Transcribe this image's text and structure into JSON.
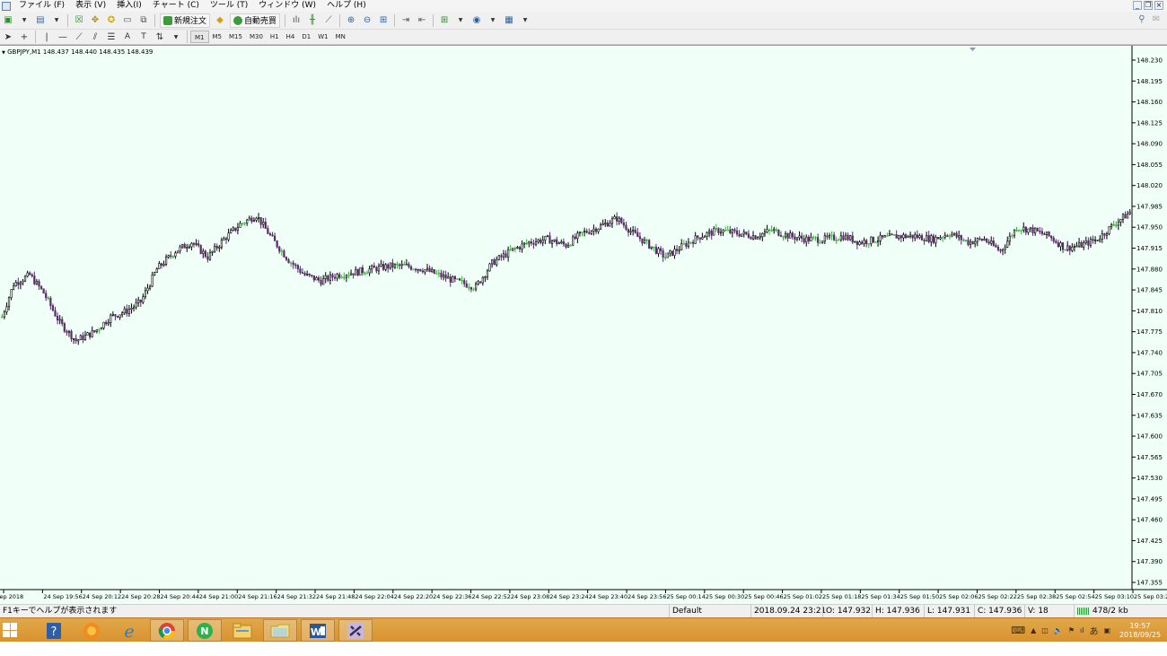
{
  "menu": {
    "items": [
      "ファイル (F)",
      "表示 (V)",
      "挿入(I)",
      "チャート (C)",
      "ツール (T)",
      "ウィンドウ (W)",
      "ヘルプ (H)"
    ]
  },
  "toolbar": {
    "new_order_label": "新規注文",
    "auto_trade_label": "自動売買",
    "timeframes": [
      "M1",
      "M5",
      "M15",
      "M30",
      "H1",
      "H4",
      "D1",
      "W1",
      "MN"
    ],
    "active_timeframe": "M1"
  },
  "chart": {
    "symbol_info": "GBPJPY,M1  148.437 148.440 148.435 148.439",
    "background_color": "#f0fff7",
    "bull_color": "#000000",
    "bear_color": "#5a2a6a",
    "doji_color": "#2db82d"
  },
  "chart_data": {
    "type": "candlestick",
    "symbol": "GBPJPY",
    "timeframe": "M1",
    "y_ticks": [
      "148.230",
      "148.195",
      "148.160",
      "148.125",
      "148.090",
      "148.055",
      "148.020",
      "147.985",
      "147.950",
      "147.915",
      "147.880",
      "147.845",
      "147.810",
      "147.775",
      "147.740",
      "147.705",
      "147.670",
      "147.635",
      "147.600",
      "147.565",
      "147.530",
      "147.495",
      "147.460",
      "147.425",
      "147.390",
      "147.355"
    ],
    "ylim": [
      147.355,
      148.23
    ],
    "x_ticks": [
      "24 Sep 2018",
      "24 Sep 19:56",
      "24 Sep 20:12",
      "24 Sep 20:28",
      "24 Sep 20:44",
      "24 Sep 21:00",
      "24 Sep 21:16",
      "24 Sep 21:32",
      "24 Sep 21:48",
      "24 Sep 22:04",
      "24 Sep 22:20",
      "24 Sep 22:36",
      "24 Sep 22:52",
      "24 Sep 23:08",
      "24 Sep 23:24",
      "24 Sep 23:40",
      "24 Sep 23:56",
      "25 Sep 00:14",
      "25 Sep 00:30",
      "25 Sep 00:46",
      "25 Sep 01:02",
      "25 Sep 01:18",
      "25 Sep 01:34",
      "25 Sep 01:50",
      "25 Sep 02:06",
      "25 Sep 02:22",
      "25 Sep 02:38",
      "25 Sep 02:54",
      "25 Sep 03:10",
      "25 Sep 03:26"
    ],
    "close_path": [
      [
        0,
        147.8
      ],
      [
        5,
        147.855
      ],
      [
        12,
        147.87
      ],
      [
        18,
        147.84
      ],
      [
        25,
        147.79
      ],
      [
        32,
        147.76
      ],
      [
        40,
        147.775
      ],
      [
        47,
        147.8
      ],
      [
        54,
        147.81
      ],
      [
        60,
        147.825
      ],
      [
        67,
        147.88
      ],
      [
        75,
        147.91
      ],
      [
        82,
        147.925
      ],
      [
        89,
        147.9
      ],
      [
        96,
        147.93
      ],
      [
        103,
        147.955
      ],
      [
        110,
        147.97
      ],
      [
        117,
        147.93
      ],
      [
        124,
        147.895
      ],
      [
        131,
        147.87
      ],
      [
        138,
        147.86
      ],
      [
        145,
        147.87
      ],
      [
        153,
        147.875
      ],
      [
        160,
        147.88
      ],
      [
        168,
        147.885
      ],
      [
        175,
        147.885
      ],
      [
        182,
        147.88
      ],
      [
        189,
        147.87
      ],
      [
        196,
        147.86
      ],
      [
        205,
        147.85
      ],
      [
        212,
        147.89
      ],
      [
        220,
        147.91
      ],
      [
        228,
        147.925
      ],
      [
        236,
        147.93
      ],
      [
        244,
        147.92
      ],
      [
        251,
        147.94
      ],
      [
        258,
        147.95
      ],
      [
        266,
        147.965
      ],
      [
        273,
        147.94
      ],
      [
        280,
        147.92
      ],
      [
        287,
        147.9
      ],
      [
        295,
        147.92
      ],
      [
        302,
        147.935
      ],
      [
        310,
        147.945
      ],
      [
        318,
        147.94
      ],
      [
        326,
        147.935
      ],
      [
        333,
        147.945
      ],
      [
        341,
        147.935
      ],
      [
        348,
        147.93
      ],
      [
        356,
        147.93
      ],
      [
        364,
        147.935
      ],
      [
        371,
        147.925
      ],
      [
        379,
        147.93
      ],
      [
        387,
        147.935
      ],
      [
        395,
        147.935
      ],
      [
        403,
        147.93
      ],
      [
        410,
        147.94
      ],
      [
        418,
        147.925
      ],
      [
        425,
        147.93
      ],
      [
        432,
        147.91
      ],
      [
        439,
        147.95
      ],
      [
        446,
        147.945
      ],
      [
        453,
        147.935
      ],
      [
        460,
        147.915
      ],
      [
        467,
        147.92
      ],
      [
        474,
        147.93
      ],
      [
        481,
        147.955
      ],
      [
        488,
        147.975
      ]
    ]
  },
  "statusbar": {
    "help_text": "F1キーでヘルプが表示されます",
    "profile": "Default",
    "datetime": "2018.09.24 23:21",
    "open": "O: 147.932",
    "high": "H: 147.936",
    "low": "L: 147.931",
    "close": "C: 147.936",
    "volume": "V: 18",
    "traffic": "478/2 kb"
  },
  "taskbar": {
    "clock_time": "19:57",
    "clock_date": "2018/09/25",
    "ime_label": "あ",
    "apps": [
      "help-app",
      "firefox",
      "internet-explorer",
      "chrome",
      "app-n",
      "file-explorer",
      "folder",
      "word",
      "metatrader"
    ]
  }
}
